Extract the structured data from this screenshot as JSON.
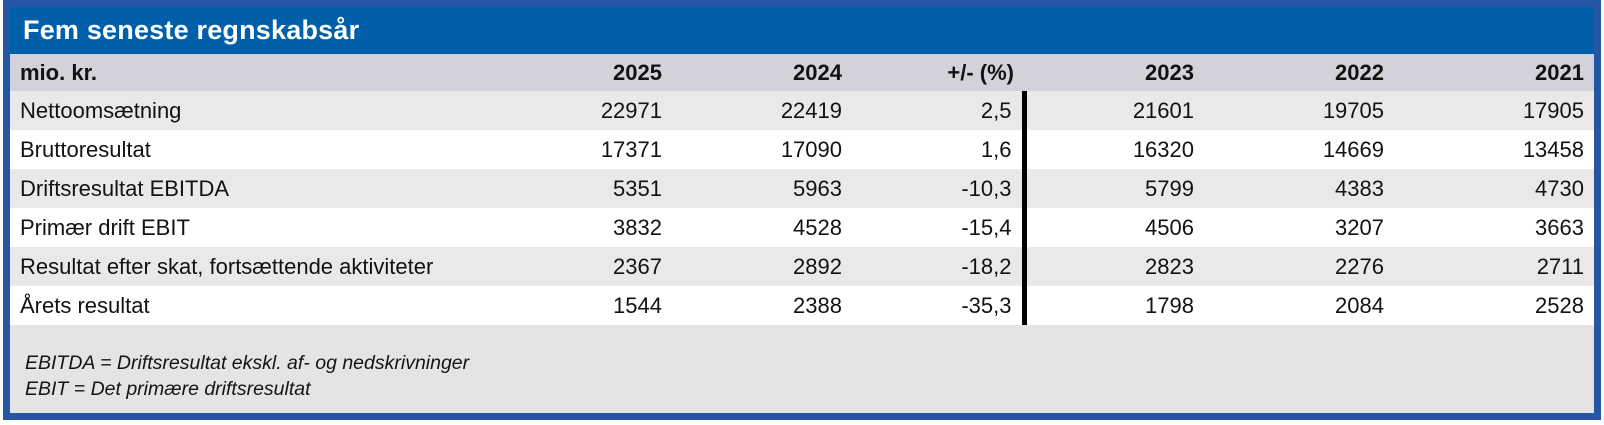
{
  "title": "Fem seneste regnskabsår",
  "colors": {
    "frame_border": "#2456A5",
    "title_bar": "#005FA9",
    "header_row_bg": "#D2D2DA",
    "row_alt_bg": "#E9E9E9",
    "footer_bg": "#E4E4E4",
    "divider_line": "#000000"
  },
  "table": {
    "unit_label": "mio. kr.",
    "year_headers": [
      "2025",
      "2024",
      "+/- (%)",
      "2023",
      "2022",
      "2021"
    ],
    "rows": [
      {
        "label": "Nettoomsætning",
        "values": [
          "22971",
          "22419",
          "2,5",
          "21601",
          "19705",
          "17905"
        ]
      },
      {
        "label": "Bruttoresultat",
        "values": [
          "17371",
          "17090",
          "1,6",
          "16320",
          "14669",
          "13458"
        ]
      },
      {
        "label": "Driftsresultat EBITDA",
        "values": [
          "5351",
          "5963",
          "-10,3",
          "5799",
          "4383",
          "4730"
        ]
      },
      {
        "label": "Primær drift EBIT",
        "values": [
          "3832",
          "4528",
          "-15,4",
          "4506",
          "3207",
          "3663"
        ]
      },
      {
        "label": "Resultat efter skat, fortsættende aktiviteter",
        "values": [
          "2367",
          "2892",
          "-18,2",
          "2823",
          "2276",
          "2711"
        ]
      },
      {
        "label": "Årets resultat",
        "values": [
          "1544",
          "2388",
          "-35,3",
          "1798",
          "2084",
          "2528"
        ]
      }
    ]
  },
  "footnotes": {
    "line1": "EBITDA = Driftsresultat ekskl. af- og nedskrivninger",
    "line2": "EBIT = Det primære driftsresultat"
  },
  "chart_data": {
    "type": "table",
    "title": "Fem seneste regnskabsår",
    "unit": "mio. kr.",
    "columns": [
      "2025",
      "2024",
      "+/- (%)",
      "2023",
      "2022",
      "2021"
    ],
    "series": [
      {
        "name": "Nettoomsætning",
        "values": [
          22971,
          22419,
          2.5,
          21601,
          19705,
          17905
        ]
      },
      {
        "name": "Bruttoresultat",
        "values": [
          17371,
          17090,
          1.6,
          16320,
          14669,
          13458
        ]
      },
      {
        "name": "Driftsresultat EBITDA",
        "values": [
          5351,
          5963,
          -10.3,
          5799,
          4383,
          4730
        ]
      },
      {
        "name": "Primær drift EBIT",
        "values": [
          3832,
          4528,
          -15.4,
          4506,
          3207,
          3663
        ]
      },
      {
        "name": "Resultat efter skat, fortsættende aktiviteter",
        "values": [
          2367,
          2892,
          -18.2,
          2823,
          2276,
          2711
        ]
      },
      {
        "name": "Årets resultat",
        "values": [
          1544,
          2388,
          -35.3,
          1798,
          2084,
          2528
        ]
      }
    ],
    "notes": [
      "EBITDA = Driftsresultat ekskl. af- og nedskrivninger",
      "EBIT = Det primære driftsresultat"
    ],
    "layout": {
      "divider_after_column": "+/- (%)",
      "striped_rows": true
    }
  }
}
